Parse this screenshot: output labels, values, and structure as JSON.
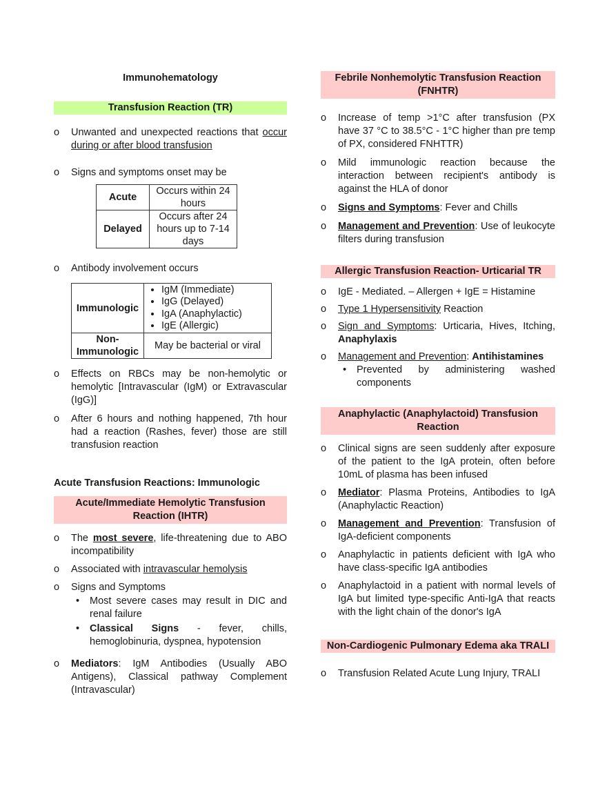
{
  "left": {
    "title": "Immunohematology",
    "header1": "Transfusion Reaction (TR)",
    "items1": [
      [
        {
          "t": "Unwanted and unexpected reactions that "
        },
        {
          "t": "occur during or after blood transfusion",
          "u": 1
        }
      ],
      [
        {
          "t": "Signs and symptoms onset may be"
        }
      ]
    ],
    "onset_table": [
      {
        "term": "Acute",
        "desc": "Occurs within 24 hours"
      },
      {
        "term": "Delayed",
        "desc": "Occurs after 24 hours up to 7-14 days"
      }
    ],
    "item_antibody": [
      {
        "t": "Antibody involvement occurs"
      }
    ],
    "antibody_table": {
      "immunologic": "Immunologic",
      "immunologic_list": [
        "IgM (Immediate)",
        "IgG (Delayed)",
        "IgA (Anaphylactic)",
        "IgE (Allergic)"
      ],
      "non": "Non-Immunologic",
      "non_desc": "May be bacterial or viral"
    },
    "items2": [
      [
        {
          "t": "Effects on RBCs may be non-hemolytic or hemolytic [Intravascular (IgM) or Extravascular (IgG)]"
        }
      ],
      [
        {
          "t": "After 6 hours and nothing happened, 7th hour had a reaction (Rashes, fever) those are still transfusion reaction"
        }
      ]
    ],
    "section": "Acute Transfusion Reactions: Immunologic",
    "header2": "Acute/Immediate Hemolytic Transfusion Reaction (IHTR)",
    "items3": [
      [
        {
          "t": "The "
        },
        {
          "t": "most severe",
          "b": 1,
          "u": 1
        },
        {
          "t": ", life-threatening due to ABO incompatibility"
        }
      ],
      [
        {
          "t": "Associated with "
        },
        {
          "t": "intravascular hemolysis",
          "u": 1
        }
      ],
      [
        {
          "t": "Signs and Symptoms"
        }
      ]
    ],
    "subs3": [
      [
        {
          "t": "Most severe cases may result in DIC and renal failure"
        }
      ],
      [
        {
          "t": "Classical Signs",
          "b": 1
        },
        {
          "t": " - fever, chills, hemoglobinuria, dyspnea, hypotension"
        }
      ]
    ],
    "items4": [
      [
        {
          "t": "Mediators",
          "b": 1
        },
        {
          "t": ": IgM Antibodies (Usually ABO Antigens), Classical pathway Complement (Intravascular)"
        }
      ]
    ]
  },
  "right": {
    "header1": "Febrile Nonhemolytic Transfusion Reaction (FNHTR)",
    "items1": [
      [
        {
          "t": "Increase of temp >1°C after transfusion (PX have 37 °C to 38.5°C - 1°C higher than pre temp of PX, considered FNHTTR)"
        }
      ],
      [
        {
          "t": "Mild immunologic reaction because the interaction between recipient's antibody is against the HLA of donor"
        }
      ],
      [
        {
          "t": "Signs and Symptoms",
          "b": 1,
          "u": 1
        },
        {
          "t": ":  Fever and Chills"
        }
      ],
      [
        {
          "t": "Management and Prevention",
          "b": 1,
          "u": 1
        },
        {
          "t": ":  Use of leukocyte filters during transfusion"
        }
      ]
    ],
    "header2": "Allergic Transfusion Reaction- Urticarial TR",
    "items2": [
      [
        {
          "t": "IgE - Mediated. – Allergen + IgE = Histamine"
        }
      ],
      [
        {
          "t": "Type 1 Hypersensitivity",
          "u": 1
        },
        {
          "t": " Reaction"
        }
      ],
      [
        {
          "t": "Sign and Symptoms",
          "u": 1
        },
        {
          "t": ": Urticaria, Hives, Itching, "
        },
        {
          "t": "Anaphylaxis",
          "b": 1
        }
      ],
      [
        {
          "t": "Management and Prevention",
          "u": 1
        },
        {
          "t": ": "
        },
        {
          "t": "Antihistamines",
          "b": 1
        }
      ]
    ],
    "subs2": [
      [
        {
          "t": "Prevented by administering washed components"
        }
      ]
    ],
    "header3": "Anaphylactic (Anaphylactoid) Transfusion Reaction",
    "items3": [
      [
        {
          "t": "Clinical signs are seen suddenly after exposure of the patient to the IgA protein, often before 10mL of plasma has been infused"
        }
      ],
      [
        {
          "t": "Mediator",
          "b": 1,
          "u": 1
        },
        {
          "t": ":  Plasma Proteins, Antibodies to IgA (Anaphylactic Reaction)"
        }
      ],
      [
        {
          "t": "Management and Prevention",
          "b": 1,
          "u": 1
        },
        {
          "t": ": Transfusion of IgA-deficient components"
        }
      ],
      [
        {
          "t": "Anaphylactic in patients deficient with IgA who have class-specific IgA antibodies"
        }
      ],
      [
        {
          "t": "Anaphylactoid in a patient with normal levels of IgA but limited type-specific Anti-IgA that reacts with the light chain of the donor's IgA"
        }
      ]
    ],
    "header4": "Non-Cardiogenic Pulmonary Edema aka TRALI",
    "items4": [
      [
        {
          "t": "Transfusion Related Acute Lung Injury, TRALI"
        }
      ]
    ]
  },
  "bullet_glyph": "o",
  "sub_glyph": "•",
  "colors": {
    "green_header": "#ccff99",
    "pink_header": "#ffcccc"
  }
}
